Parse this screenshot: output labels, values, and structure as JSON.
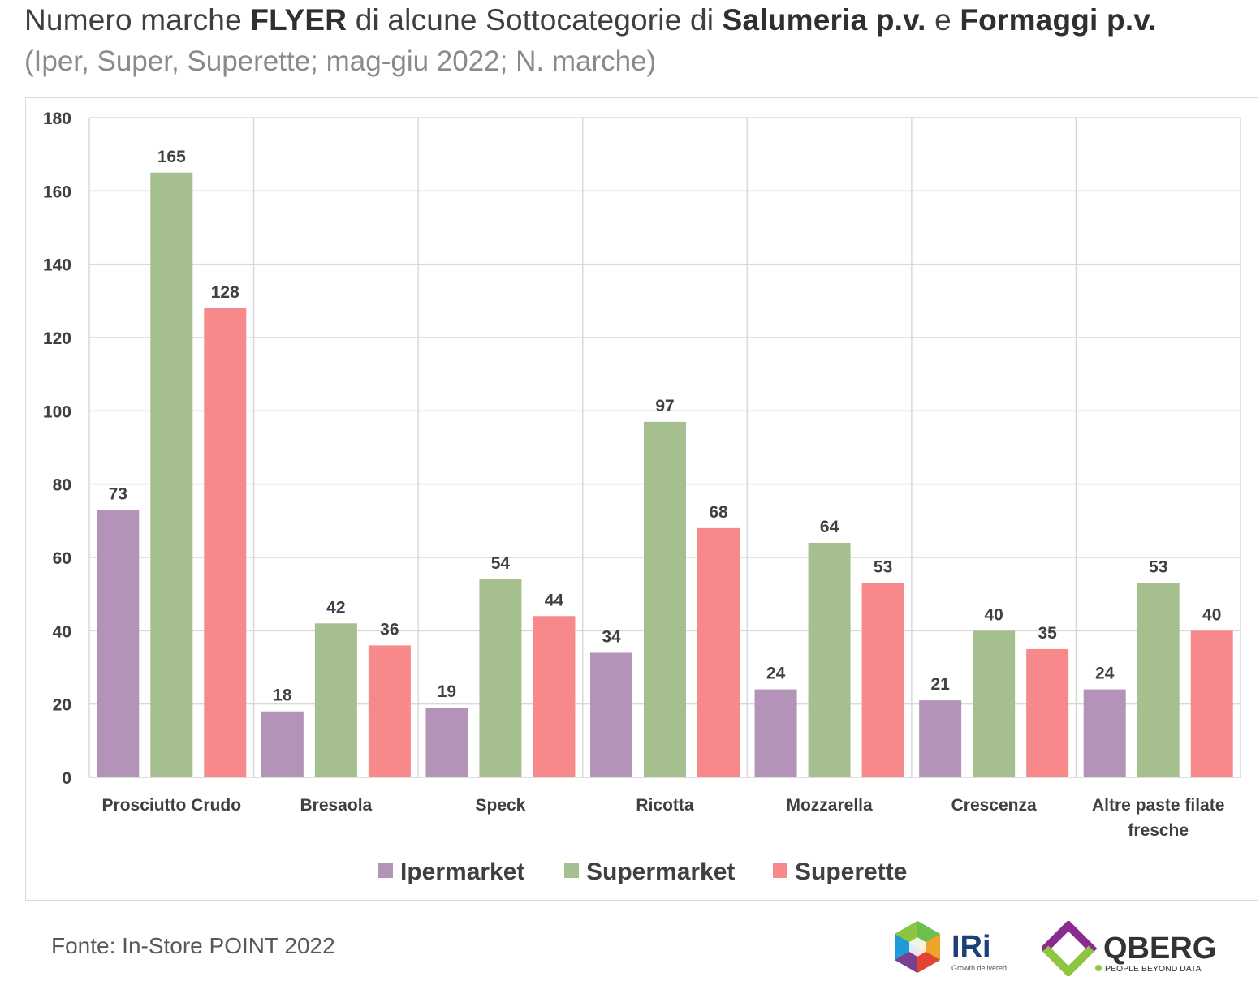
{
  "title": {
    "part1": "Numero marche ",
    "part2": "FLYER",
    "part3": " di alcune Sottocategorie di ",
    "part4": "Salumeria p.v.",
    "part5": " e ",
    "part6": "Formaggi p.v."
  },
  "subtitle": "(Iper, Super, Superette; mag-giu 2022; N. marche)",
  "source": "Fonte: In-Store POINT 2022",
  "logos": {
    "iri": {
      "name": "IRi",
      "tagline": "Growth delivered."
    },
    "qberg": {
      "name": "QBERG",
      "tagline": "PEOPLE BEYOND DATA"
    }
  },
  "chart_data": {
    "type": "bar",
    "categories": [
      "Prosciutto Crudo",
      "Bresaola",
      "Speck",
      "Ricotta",
      "Mozzarella",
      "Crescenza",
      "Altre paste filate fresche"
    ],
    "series": [
      {
        "name": "Ipermarket",
        "color": "#b393b7",
        "values": [
          73,
          18,
          19,
          34,
          24,
          21,
          24
        ]
      },
      {
        "name": "Supermarket",
        "color": "#a6bf8e",
        "values": [
          165,
          42,
          54,
          97,
          64,
          40,
          53
        ]
      },
      {
        "name": "Superette",
        "color": "#f8898a",
        "values": [
          128,
          36,
          44,
          68,
          53,
          35,
          40
        ]
      }
    ],
    "ylim": [
      0,
      180
    ],
    "yticks": [
      0,
      20,
      40,
      60,
      80,
      100,
      120,
      140,
      160,
      180
    ],
    "grid": true,
    "legend": "bottom"
  }
}
